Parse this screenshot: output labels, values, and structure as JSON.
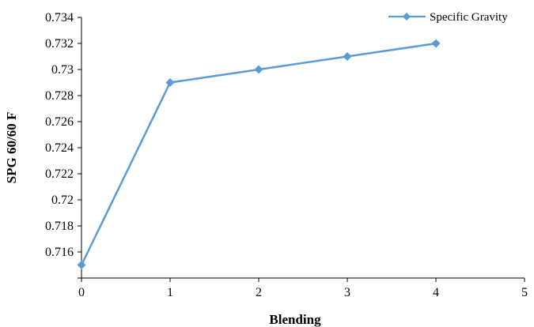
{
  "chart_data": {
    "type": "line",
    "title": "",
    "xlabel": "Blending",
    "ylabel": "SPG 60/60 F",
    "xlim": [
      0,
      5
    ],
    "ylim": [
      0.714,
      0.734
    ],
    "x_ticks": [
      0,
      1,
      2,
      3,
      4,
      5
    ],
    "y_ticks": [
      0.716,
      0.718,
      0.72,
      0.722,
      0.724,
      0.726,
      0.728,
      0.73,
      0.732,
      0.734
    ],
    "grid": false,
    "legend_position": "top-right",
    "series": [
      {
        "name": "Specific Gravity",
        "color": "#5B9BD5",
        "marker": "diamond",
        "x": [
          0,
          1,
          2,
          3,
          4
        ],
        "y": [
          0.715,
          0.729,
          0.73,
          0.731,
          0.732
        ]
      }
    ]
  }
}
